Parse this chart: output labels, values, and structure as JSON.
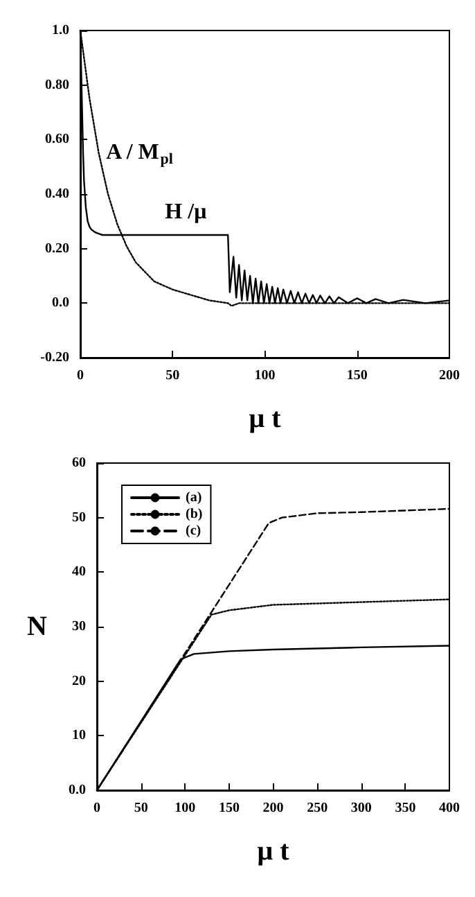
{
  "chart_data": [
    {
      "type": "line",
      "xlabel": "μ t",
      "xlim": [
        0,
        200
      ],
      "xticks": [
        0,
        50,
        100,
        150,
        200
      ],
      "ylim": [
        -0.2,
        1.0
      ],
      "yticks": [
        {
          "value": -0.2,
          "label": "-0.20"
        },
        {
          "value": 0,
          "label": "0.0"
        },
        {
          "value": 0.2,
          "label": "0.20"
        },
        {
          "value": 0.4,
          "label": "0.40"
        },
        {
          "value": 0.6,
          "label": "0.60"
        },
        {
          "value": 0.8,
          "label": "0.80"
        },
        {
          "value": 1.0,
          "label": "1.0"
        }
      ],
      "grid": false,
      "legend": false,
      "annotations": [
        "A / M$_{pl}$",
        "H /μ"
      ],
      "series": [
        {
          "color": "#000000",
          "line_style": "solid",
          "x": [
            0,
            0.5,
            1,
            1.5,
            2,
            3,
            4,
            5,
            6,
            8,
            10,
            12,
            20,
            40,
            60,
            80,
            80.5,
            81,
            83,
            84.5,
            86,
            87.5,
            89,
            90.5,
            92,
            93.5,
            95,
            96.5,
            98,
            99.5,
            101,
            102.5,
            104,
            105.5,
            107,
            108.5,
            110,
            112,
            114,
            116,
            118,
            120,
            122,
            124,
            126,
            128,
            130,
            132.5,
            135,
            137.5,
            140,
            145,
            150,
            155,
            160,
            167,
            175,
            187,
            200
          ],
          "values": [
            1.0,
            0.85,
            0.7,
            0.55,
            0.45,
            0.35,
            0.3,
            0.28,
            0.27,
            0.26,
            0.255,
            0.25,
            0.25,
            0.25,
            0.25,
            0.25,
            0.15,
            0.04,
            0.17,
            0.02,
            0.14,
            0.01,
            0.12,
            0.01,
            0.1,
            0.0,
            0.09,
            0.0,
            0.08,
            0.0,
            0.07,
            0.0,
            0.06,
            0.0,
            0.055,
            0.0,
            0.05,
            0.0,
            0.045,
            0.0,
            0.04,
            0.0,
            0.035,
            0.0,
            0.03,
            0.0,
            0.028,
            0.0,
            0.025,
            0.0,
            0.022,
            0.0,
            0.018,
            0.0,
            0.015,
            0.0,
            0.012,
            0.0,
            0.01
          ]
        },
        {
          "color": "#000000",
          "line_style": "dotted",
          "x": [
            0,
            2,
            5,
            10,
            15,
            20,
            25,
            30,
            40,
            50,
            60,
            70,
            80,
            82,
            86,
            100,
            150,
            200
          ],
          "values": [
            1.0,
            0.9,
            0.75,
            0.55,
            0.4,
            0.29,
            0.21,
            0.15,
            0.08,
            0.05,
            0.03,
            0.01,
            0.0,
            -0.01,
            0.0,
            0.0,
            0.0,
            0.0
          ]
        }
      ]
    },
    {
      "type": "line",
      "xlabel": "μ t",
      "ylabel": "N",
      "xlim": [
        0,
        400
      ],
      "xticks": [
        0,
        50,
        100,
        150,
        200,
        250,
        300,
        350,
        400
      ],
      "ylim": [
        0,
        60
      ],
      "yticks": [
        {
          "value": 0,
          "label": "0.0"
        },
        10,
        20,
        30,
        40,
        50,
        60
      ],
      "grid": false,
      "legend": "top left",
      "series": [
        {
          "name": "(a)",
          "color": "#000000",
          "line_style": "solid",
          "x": [
            0,
            95,
            110,
            150,
            200,
            300,
            400
          ],
          "values": [
            0,
            24,
            25,
            25.5,
            25.8,
            26.2,
            26.5
          ]
        },
        {
          "name": "(b)",
          "color": "#000000",
          "line_style": "dotted",
          "x": [
            0,
            130,
            150,
            200,
            300,
            400
          ],
          "values": [
            0,
            32.2,
            33,
            34,
            34.5,
            35
          ]
        },
        {
          "name": "(c)",
          "color": "#000000",
          "line_style": "dashed",
          "x": [
            0,
            195,
            210,
            250,
            300,
            400
          ],
          "values": [
            0,
            49,
            50,
            50.8,
            51,
            51.6
          ]
        }
      ]
    }
  ]
}
